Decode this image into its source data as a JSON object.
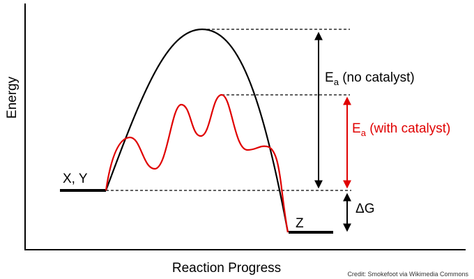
{
  "axes": {
    "y_label": "Energy",
    "x_label": "Reaction Progress"
  },
  "labels": {
    "reactants": "X, Y",
    "product": "Z",
    "ea_no_catalyst": {
      "symbol": "E",
      "subscript": "a",
      "text": " (no catalyst)"
    },
    "ea_with_catalyst": {
      "symbol": "E",
      "subscript": "a",
      "text": " (with catalyst)"
    },
    "delta_g": "ΔG"
  },
  "credit": "Credit: Smokefoot via Wikimedia Commons",
  "colors": {
    "uncatalyzed_curve": "#000000",
    "catalyzed_curve": "#e00000",
    "ea_catalyst_label": "#e00000",
    "axes": "#000000"
  }
}
